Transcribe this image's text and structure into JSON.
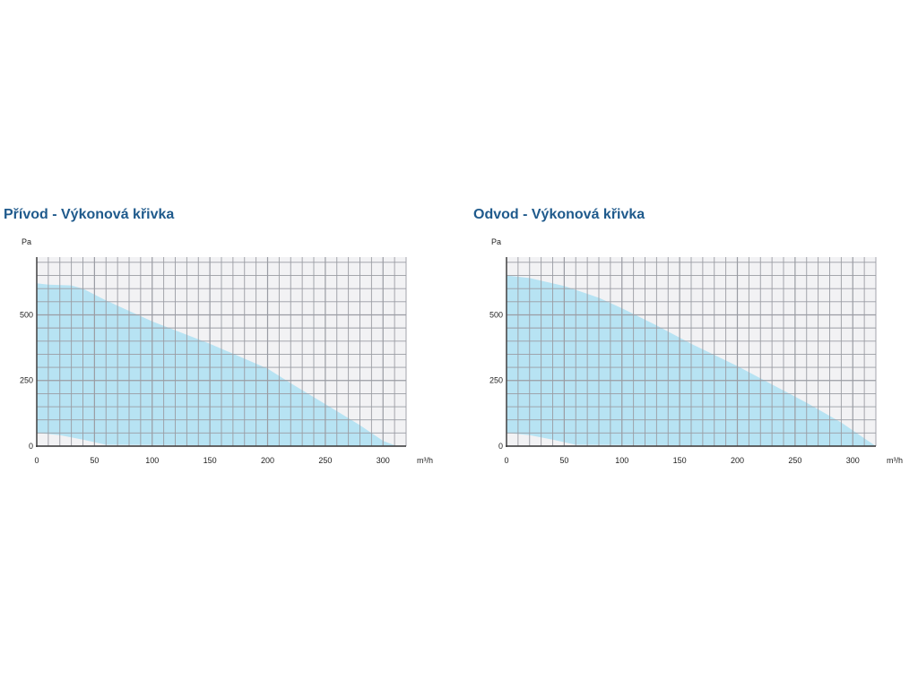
{
  "chart_data": [
    {
      "type": "area",
      "title": "Přívod - Výkonová křivka",
      "ylabel": "Pa",
      "xlabel": "m³/h",
      "xlim": [
        0,
        320
      ],
      "ylim": [
        0,
        720
      ],
      "x_ticks": [
        0,
        50,
        100,
        150,
        200,
        250,
        300
      ],
      "y_ticks": [
        0,
        250,
        500
      ],
      "grid": true,
      "colors": {
        "fill": "#b7e3f3",
        "plot_background": "#f2f2f4",
        "grid": "#9a9ca3"
      },
      "series": [
        {
          "upper": {
            "x": [
              0,
              10,
              30,
              40,
              60,
              100,
              150,
              200,
              220,
              250,
              280,
              300,
              312
            ],
            "y": [
              620,
              615,
              612,
              600,
              555,
              475,
              390,
              295,
              240,
              160,
              80,
              20,
              0
            ]
          },
          "lower": {
            "x": [
              0,
              20,
              40,
              60,
              312
            ],
            "y": [
              50,
              42,
              25,
              5,
              0
            ]
          }
        }
      ]
    },
    {
      "type": "area",
      "title": "Odvod - Výkonová křivka",
      "ylabel": "Pa",
      "xlabel": "m³/h",
      "xlim": [
        0,
        320
      ],
      "ylim": [
        0,
        720
      ],
      "x_ticks": [
        0,
        50,
        100,
        150,
        200,
        250,
        300
      ],
      "y_ticks": [
        0,
        250,
        500
      ],
      "grid": true,
      "colors": {
        "fill": "#b7e3f3",
        "plot_background": "#f2f2f4",
        "grid": "#9a9ca3"
      },
      "series": [
        {
          "upper": {
            "x": [
              0,
              20,
              50,
              80,
              100,
              130,
              160,
              200,
              230,
              260,
              290,
              310,
              320
            ],
            "y": [
              650,
              640,
              610,
              565,
              525,
              460,
              390,
              305,
              235,
              165,
              90,
              30,
              0
            ]
          },
          "lower": {
            "x": [
              0,
              20,
              40,
              60,
              320
            ],
            "y": [
              50,
              42,
              25,
              5,
              0
            ]
          }
        }
      ]
    }
  ]
}
